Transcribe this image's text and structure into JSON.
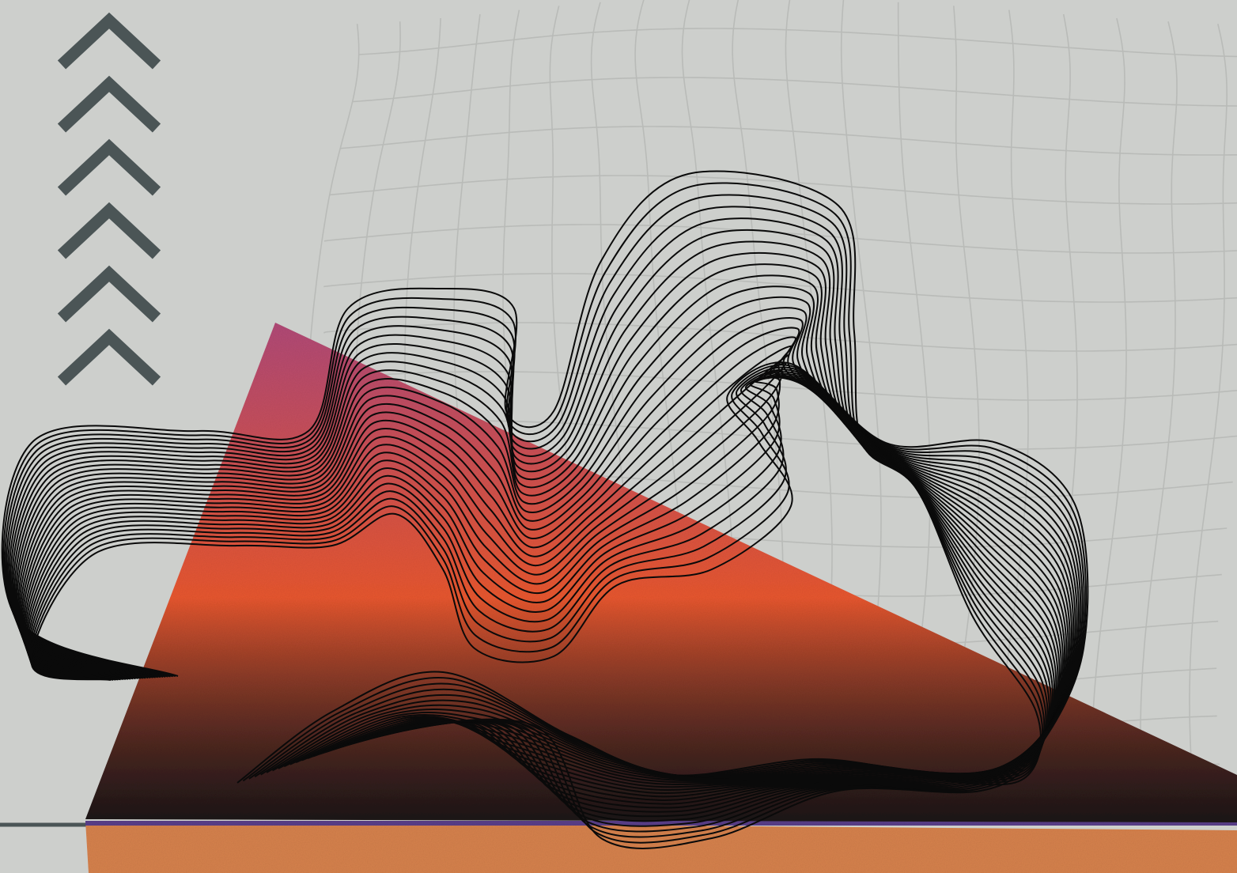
{
  "artwork": {
    "kind": "abstract-graphic",
    "chevron_count": 6,
    "chevron_icon": "chevron-up-icon",
    "colors": {
      "background": "#cdcfcc",
      "grid_lines": "#b9bbb8",
      "chevrons": "#4b5556",
      "rule_line": "#4b5556",
      "triangle_top": "#b24a78",
      "triangle_mid": "#e9572f",
      "triangle_dark": "#3f2f33",
      "slab_base": "#d7824d",
      "slab_stripe": "#5a3f8a",
      "wave_lines": "#0a0a0a"
    }
  }
}
